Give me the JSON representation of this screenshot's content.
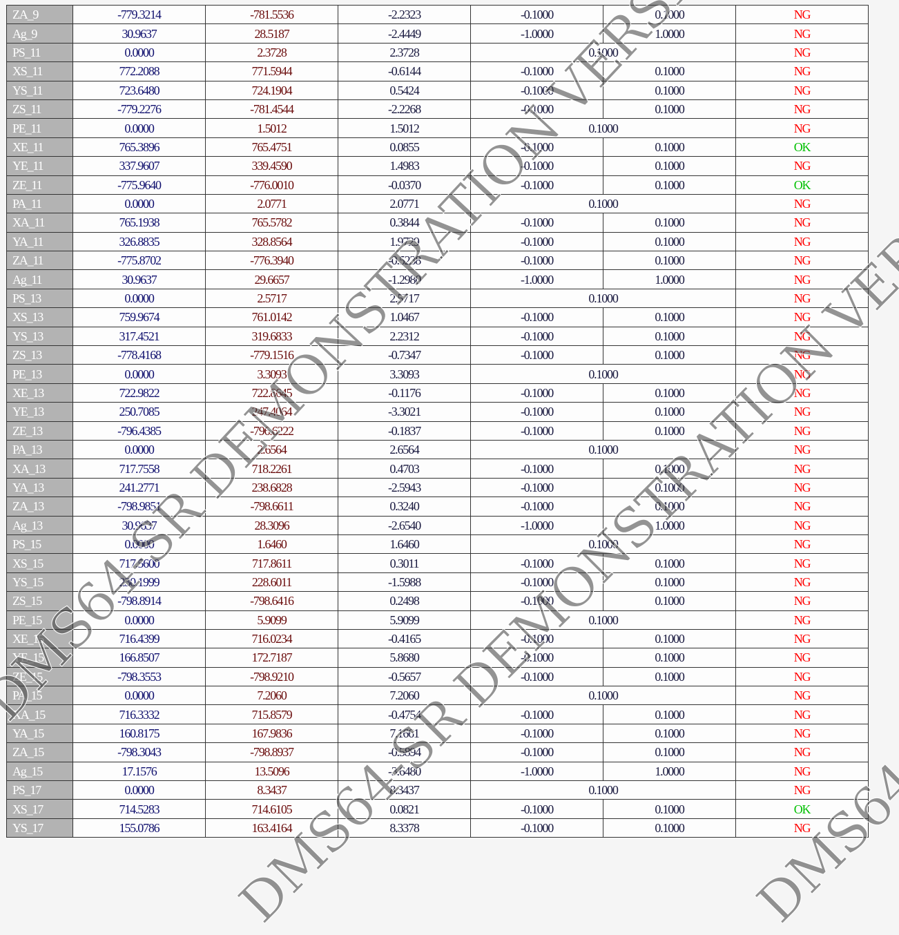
{
  "colors": {
    "ok": "#00c000",
    "ng": "#ff0000",
    "label_bg": "#b3b3b3"
  },
  "watermark": "DMS64-SR DEMONSTRATION VERSION",
  "rows": [
    [
      "ZA_9",
      "-779.3214",
      "-781.5536",
      "-2.2323",
      "-0.1000",
      "0.1000",
      "NG"
    ],
    [
      "Ag_9",
      "30.9637",
      "28.5187",
      "-2.4449",
      "-1.0000",
      "1.0000",
      "NG"
    ],
    [
      "PS_11",
      "0.0000",
      "2.3728",
      "2.3728",
      "0.1000",
      null,
      "NG"
    ],
    [
      "XS_11",
      "772.2088",
      "771.5944",
      "-0.6144",
      "-0.1000",
      "0.1000",
      "NG"
    ],
    [
      "YS_11",
      "723.6480",
      "724.1904",
      "0.5424",
      "-0.1000",
      "0.1000",
      "NG"
    ],
    [
      "ZS_11",
      "-779.2276",
      "-781.4544",
      "-2.2268",
      "-0.1000",
      "0.1000",
      "NG"
    ],
    [
      "PE_11",
      "0.0000",
      "1.5012",
      "1.5012",
      "0.1000",
      null,
      "NG"
    ],
    [
      "XE_11",
      "765.3896",
      "765.4751",
      "0.0855",
      "-0.1000",
      "0.1000",
      "OK"
    ],
    [
      "YE_11",
      "337.9607",
      "339.4590",
      "1.4983",
      "-0.1000",
      "0.1000",
      "NG"
    ],
    [
      "ZE_11",
      "-775.9640",
      "-776.0010",
      "-0.0370",
      "-0.1000",
      "0.1000",
      "OK"
    ],
    [
      "PA_11",
      "0.0000",
      "2.0771",
      "2.0771",
      "0.1000",
      null,
      "NG"
    ],
    [
      "XA_11",
      "765.1938",
      "765.5782",
      "0.3844",
      "-0.1000",
      "0.1000",
      "NG"
    ],
    [
      "YA_11",
      "326.8835",
      "328.8564",
      "1.9729",
      "-0.1000",
      "0.1000",
      "NG"
    ],
    [
      "ZA_11",
      "-775.8702",
      "-776.3940",
      "-0.5238",
      "-0.1000",
      "0.1000",
      "NG"
    ],
    [
      "Ag_11",
      "30.9637",
      "29.6657",
      "-1.2980",
      "-1.0000",
      "1.0000",
      "NG"
    ],
    [
      "PS_13",
      "0.0000",
      "2.5717",
      "2.5717",
      "0.1000",
      null,
      "NG"
    ],
    [
      "XS_13",
      "759.9674",
      "761.0142",
      "1.0467",
      "-0.1000",
      "0.1000",
      "NG"
    ],
    [
      "YS_13",
      "317.4521",
      "319.6833",
      "2.2312",
      "-0.1000",
      "0.1000",
      "NG"
    ],
    [
      "ZS_13",
      "-778.4168",
      "-779.1516",
      "-0.7347",
      "-0.1000",
      "0.1000",
      "NG"
    ],
    [
      "PE_13",
      "0.0000",
      "3.3093",
      "3.3093",
      "0.1000",
      null,
      "NG"
    ],
    [
      "XE_13",
      "722.9822",
      "722.8645",
      "-0.1176",
      "-0.1000",
      "0.1000",
      "NG"
    ],
    [
      "YE_13",
      "250.7085",
      "247.4064",
      "-3.3021",
      "-0.1000",
      "0.1000",
      "NG"
    ],
    [
      "ZE_13",
      "-796.4385",
      "-796.6222",
      "-0.1837",
      "-0.1000",
      "0.1000",
      "NG"
    ],
    [
      "PA_13",
      "0.0000",
      "2.6564",
      "2.6564",
      "0.1000",
      null,
      "NG"
    ],
    [
      "XA_13",
      "717.7558",
      "718.2261",
      "0.4703",
      "-0.1000",
      "0.1000",
      "NG"
    ],
    [
      "YA_13",
      "241.2771",
      "238.6828",
      "-2.5943",
      "-0.1000",
      "0.1000",
      "NG"
    ],
    [
      "ZA_13",
      "-798.9851",
      "-798.6611",
      "0.3240",
      "-0.1000",
      "0.1000",
      "NG"
    ],
    [
      "Ag_13",
      "30.9637",
      "28.3096",
      "-2.6540",
      "-1.0000",
      "1.0000",
      "NG"
    ],
    [
      "PS_15",
      "0.0000",
      "1.6460",
      "1.6460",
      "0.1000",
      null,
      "NG"
    ],
    [
      "XS_15",
      "717.5600",
      "717.8611",
      "0.3011",
      "-0.1000",
      "0.1000",
      "NG"
    ],
    [
      "YS_15",
      "230.1999",
      "228.6011",
      "-1.5988",
      "-0.1000",
      "0.1000",
      "NG"
    ],
    [
      "ZS_15",
      "-798.8914",
      "-798.6416",
      "0.2498",
      "-0.1000",
      "0.1000",
      "NG"
    ],
    [
      "PE_15",
      "0.0000",
      "5.9099",
      "5.9099",
      "0.1000",
      null,
      "NG"
    ],
    [
      "XE_15",
      "716.4399",
      "716.0234",
      "-0.4165",
      "-0.1000",
      "0.1000",
      "NG"
    ],
    [
      "YE_15",
      "166.8507",
      "172.7187",
      "5.8680",
      "-0.1000",
      "0.1000",
      "NG"
    ],
    [
      "ZE_15",
      "-798.3553",
      "-798.9210",
      "-0.5657",
      "-0.1000",
      "0.1000",
      "NG"
    ],
    [
      "PA_15",
      "0.0000",
      "7.2060",
      "7.2060",
      "0.1000",
      null,
      "NG"
    ],
    [
      "XA_15",
      "716.3332",
      "715.8579",
      "-0.4754",
      "-0.1000",
      "0.1000",
      "NG"
    ],
    [
      "YA_15",
      "160.8175",
      "167.9836",
      "7.1661",
      "-0.1000",
      "0.1000",
      "NG"
    ],
    [
      "ZA_15",
      "-798.3043",
      "-798.8937",
      "-0.5894",
      "-0.1000",
      "0.1000",
      "NG"
    ],
    [
      "Ag_15",
      "17.1576",
      "13.5096",
      "-3.6480",
      "-1.0000",
      "1.0000",
      "NG"
    ],
    [
      "PS_17",
      "0.0000",
      "8.3437",
      "8.3437",
      "0.1000",
      null,
      "NG"
    ],
    [
      "XS_17",
      "714.5283",
      "714.6105",
      "0.0821",
      "-0.1000",
      "0.1000",
      "OK"
    ],
    [
      "YS_17",
      "155.0786",
      "163.4164",
      "8.3378",
      "-0.1000",
      "0.1000",
      "NG"
    ]
  ]
}
